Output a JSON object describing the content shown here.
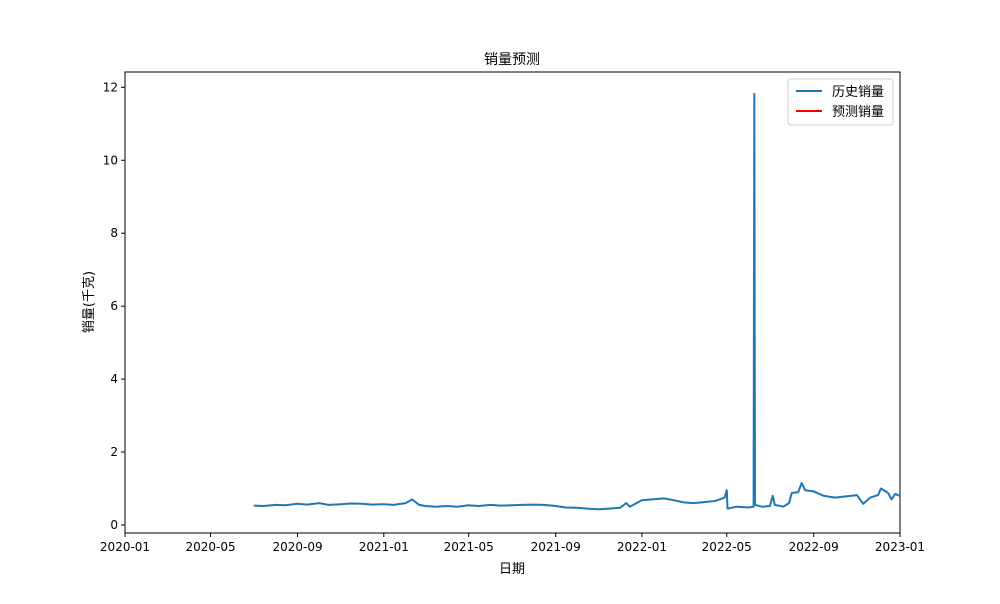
{
  "chart_data": {
    "type": "line",
    "title": "销量预测",
    "xlabel": "日期",
    "ylabel": "销量(千克)",
    "x_range": [
      "2020-01-01",
      "2023-01-01"
    ],
    "ylim": [
      -0.22,
      12.42
    ],
    "x_ticks": [
      "2020-01",
      "2020-05",
      "2020-09",
      "2021-01",
      "2021-05",
      "2021-09",
      "2022-01",
      "2022-05",
      "2022-09",
      "2023-01"
    ],
    "y_ticks": [
      0,
      2,
      4,
      6,
      8,
      10,
      12
    ],
    "grid": false,
    "legend_position": "top-right",
    "series": [
      {
        "name": "历史销量",
        "color": "#1f77b4",
        "points": [
          [
            "2020-07-01",
            0.53
          ],
          [
            "2020-07-15",
            0.52
          ],
          [
            "2020-08-01",
            0.55
          ],
          [
            "2020-08-15",
            0.54
          ],
          [
            "2020-09-01",
            0.58
          ],
          [
            "2020-09-15",
            0.56
          ],
          [
            "2020-10-01",
            0.6
          ],
          [
            "2020-10-15",
            0.55
          ],
          [
            "2020-11-01",
            0.57
          ],
          [
            "2020-11-15",
            0.59
          ],
          [
            "2020-12-01",
            0.58
          ],
          [
            "2020-12-15",
            0.56
          ],
          [
            "2021-01-01",
            0.57
          ],
          [
            "2021-01-15",
            0.55
          ],
          [
            "2021-02-01",
            0.6
          ],
          [
            "2021-02-10",
            0.7
          ],
          [
            "2021-02-20",
            0.55
          ],
          [
            "2021-03-01",
            0.52
          ],
          [
            "2021-03-15",
            0.5
          ],
          [
            "2021-04-01",
            0.52
          ],
          [
            "2021-04-15",
            0.5
          ],
          [
            "2021-05-01",
            0.54
          ],
          [
            "2021-05-15",
            0.52
          ],
          [
            "2021-06-01",
            0.55
          ],
          [
            "2021-06-15",
            0.53
          ],
          [
            "2021-07-01",
            0.54
          ],
          [
            "2021-07-15",
            0.55
          ],
          [
            "2021-08-01",
            0.56
          ],
          [
            "2021-08-15",
            0.55
          ],
          [
            "2021-09-01",
            0.52
          ],
          [
            "2021-09-15",
            0.48
          ],
          [
            "2021-10-01",
            0.47
          ],
          [
            "2021-10-15",
            0.45
          ],
          [
            "2021-11-01",
            0.43
          ],
          [
            "2021-11-15",
            0.45
          ],
          [
            "2021-12-01",
            0.47
          ],
          [
            "2021-12-10",
            0.6
          ],
          [
            "2021-12-15",
            0.5
          ],
          [
            "2022-01-01",
            0.68
          ],
          [
            "2022-01-15",
            0.7
          ],
          [
            "2022-02-01",
            0.73
          ],
          [
            "2022-02-15",
            0.68
          ],
          [
            "2022-03-01",
            0.62
          ],
          [
            "2022-03-15",
            0.6
          ],
          [
            "2022-04-01",
            0.63
          ],
          [
            "2022-04-15",
            0.66
          ],
          [
            "2022-04-28",
            0.75
          ],
          [
            "2022-05-01",
            0.95
          ],
          [
            "2022-05-02",
            0.45
          ],
          [
            "2022-05-15",
            0.5
          ],
          [
            "2022-06-01",
            0.48
          ],
          [
            "2022-06-08",
            0.5
          ],
          [
            "2022-06-09",
            11.82
          ],
          [
            "2022-06-10",
            0.55
          ],
          [
            "2022-06-20",
            0.5
          ],
          [
            "2022-07-01",
            0.52
          ],
          [
            "2022-07-05",
            0.8
          ],
          [
            "2022-07-08",
            0.55
          ],
          [
            "2022-07-20",
            0.5
          ],
          [
            "2022-07-28",
            0.6
          ],
          [
            "2022-08-01",
            0.88
          ],
          [
            "2022-08-10",
            0.9
          ],
          [
            "2022-08-15",
            1.15
          ],
          [
            "2022-08-20",
            0.95
          ],
          [
            "2022-09-01",
            0.92
          ],
          [
            "2022-09-15",
            0.8
          ],
          [
            "2022-10-01",
            0.75
          ],
          [
            "2022-10-15",
            0.78
          ],
          [
            "2022-11-01",
            0.82
          ],
          [
            "2022-11-10",
            0.58
          ],
          [
            "2022-11-20",
            0.75
          ],
          [
            "2022-12-01",
            0.82
          ],
          [
            "2022-12-05",
            1.0
          ],
          [
            "2022-12-15",
            0.88
          ],
          [
            "2022-12-20",
            0.7
          ],
          [
            "2022-12-25",
            0.85
          ],
          [
            "2023-01-01",
            0.8
          ]
        ]
      },
      {
        "name": "预测销量",
        "color": "#ff0000",
        "points": []
      }
    ]
  }
}
